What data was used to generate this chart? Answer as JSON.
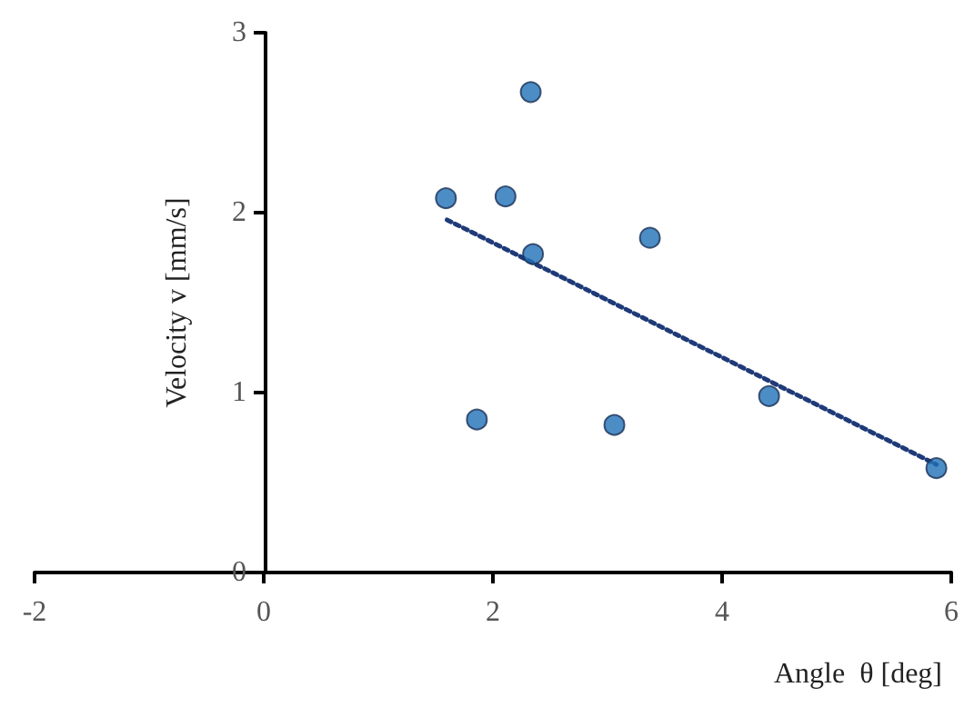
{
  "chart_data": {
    "type": "scatter",
    "xlabel": "Angle  θ [deg]",
    "ylabel": "Velocity v [mm/s]",
    "xlim": [
      -2,
      6
    ],
    "xticks": [
      -2,
      0,
      2,
      4,
      6
    ],
    "ylim": [
      0,
      3
    ],
    "yticks": [
      0,
      1,
      2,
      3
    ],
    "marker": "circle",
    "series": [
      {
        "color": "#1f70b8",
        "x": [
          1.59,
          2.11,
          2.33,
          2.35,
          1.86,
          3.37,
          3.06,
          4.41,
          5.87
        ],
        "values": [
          2.08,
          2.09,
          2.67,
          1.77,
          0.85,
          1.86,
          0.82,
          0.98,
          0.58
        ]
      },
      {
        "type": "line",
        "color": "#1f3a78",
        "marker": "none",
        "line_style": "dotted",
        "x": [
          1.6,
          5.87
        ],
        "values": [
          1.96,
          0.6
        ]
      }
    ]
  }
}
